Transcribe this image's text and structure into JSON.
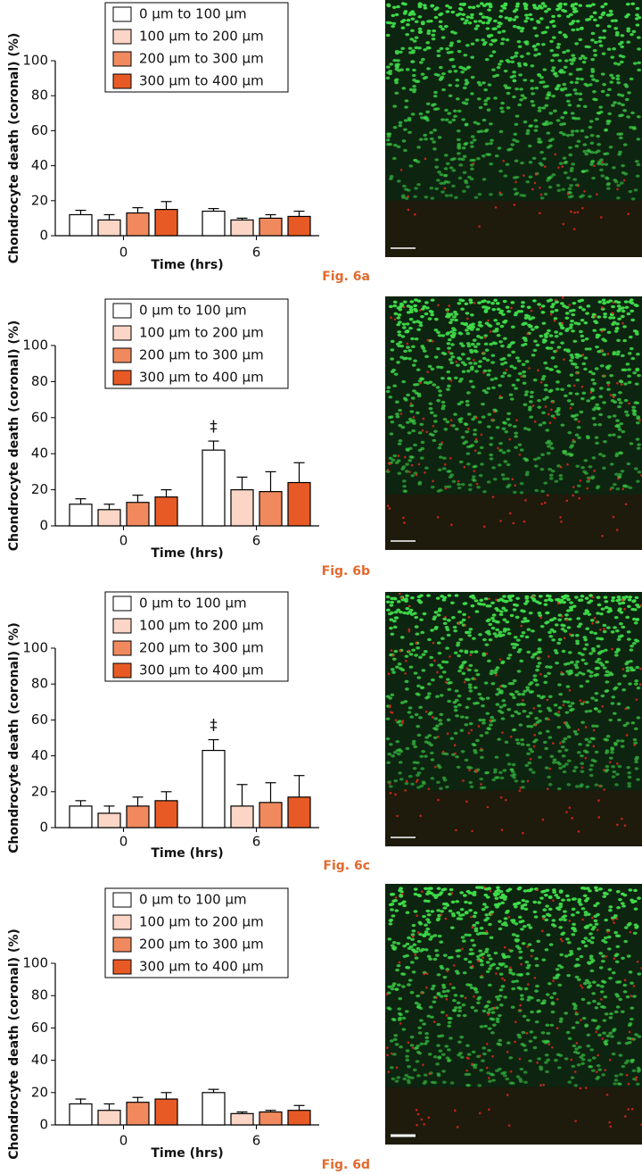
{
  "chart_data": [
    {
      "type": "bar",
      "figure_label": "Fig. 6a",
      "ylabel": "Chondrocyte death (coronal) (%)",
      "xlabel": "Time (hrs)",
      "categories": [
        "0",
        "6"
      ],
      "ylim": [
        0,
        100
      ],
      "yticks": [
        0,
        20,
        40,
        60,
        80,
        100
      ],
      "series": [
        {
          "name": "0 µm to 100 µm",
          "color": "#ffffff",
          "values": [
            12,
            14
          ],
          "errors": [
            2.5,
            1.5
          ]
        },
        {
          "name": "100 µm to 200 µm",
          "color": "#fbd5c5",
          "values": [
            9,
            9
          ],
          "errors": [
            3,
            1
          ]
        },
        {
          "name": "200 µm to 300 µm",
          "color": "#f08a5e",
          "values": [
            13,
            10
          ],
          "errors": [
            3,
            2
          ]
        },
        {
          "name": "300 µm to 400 µm",
          "color": "#e85a25",
          "values": [
            15,
            11
          ],
          "errors": [
            4.5,
            3
          ]
        }
      ]
    },
    {
      "type": "bar",
      "figure_label": "Fig. 6b",
      "ylabel": "Chondrocyte death (coronal) (%)",
      "xlabel": "Time (hrs)",
      "categories": [
        "0",
        "6"
      ],
      "ylim": [
        0,
        100
      ],
      "yticks": [
        0,
        20,
        40,
        60,
        80,
        100
      ],
      "annotation": "‡",
      "series": [
        {
          "name": "0 µm to 100 µm",
          "color": "#ffffff",
          "values": [
            12,
            42
          ],
          "errors": [
            3,
            5
          ]
        },
        {
          "name": "100 µm to 200 µm",
          "color": "#fbd5c5",
          "values": [
            9,
            20
          ],
          "errors": [
            3,
            7
          ]
        },
        {
          "name": "200 µm to 300 µm",
          "color": "#f08a5e",
          "values": [
            13,
            19
          ],
          "errors": [
            4,
            11
          ]
        },
        {
          "name": "300 µm to 400 µm",
          "color": "#e85a25",
          "values": [
            16,
            24
          ],
          "errors": [
            4,
            11
          ]
        }
      ]
    },
    {
      "type": "bar",
      "figure_label": "Fig. 6c",
      "ylabel": "Chondrocyte death (coronal) (%)",
      "xlabel": "Time (hrs)",
      "categories": [
        "0",
        "6"
      ],
      "ylim": [
        0,
        100
      ],
      "yticks": [
        0,
        20,
        40,
        60,
        80,
        100
      ],
      "annotation": "‡",
      "series": [
        {
          "name": "0 µm to 100 µm",
          "color": "#ffffff",
          "values": [
            12,
            43
          ],
          "errors": [
            3,
            6
          ]
        },
        {
          "name": "100 µm to 200 µm",
          "color": "#fbd5c5",
          "values": [
            8,
            12
          ],
          "errors": [
            4,
            12
          ]
        },
        {
          "name": "200 µm to 300 µm",
          "color": "#f08a5e",
          "values": [
            12,
            14
          ],
          "errors": [
            5,
            11
          ]
        },
        {
          "name": "300 µm to 400 µm",
          "color": "#e85a25",
          "values": [
            15,
            17
          ],
          "errors": [
            5,
            12
          ]
        }
      ]
    },
    {
      "type": "bar",
      "figure_label": "Fig. 6d",
      "ylabel": "Chondrocyte death (coronal) (%)",
      "xlabel": "Time (hrs)",
      "categories": [
        "0",
        "6"
      ],
      "ylim": [
        0,
        100
      ],
      "yticks": [
        0,
        20,
        40,
        60,
        80,
        100
      ],
      "series": [
        {
          "name": "0 µm to 100 µm",
          "color": "#ffffff",
          "values": [
            13,
            20
          ],
          "errors": [
            3,
            2
          ]
        },
        {
          "name": "100 µm to 200 µm",
          "color": "#fbd5c5",
          "values": [
            9,
            7
          ],
          "errors": [
            4,
            1
          ]
        },
        {
          "name": "200 µm to 300 µm",
          "color": "#f08a5e",
          "values": [
            14,
            8
          ],
          "errors": [
            3,
            1
          ]
        },
        {
          "name": "300 µm to 400 µm",
          "color": "#e85a25",
          "values": [
            16,
            9
          ],
          "errors": [
            4,
            3
          ]
        }
      ]
    }
  ]
}
